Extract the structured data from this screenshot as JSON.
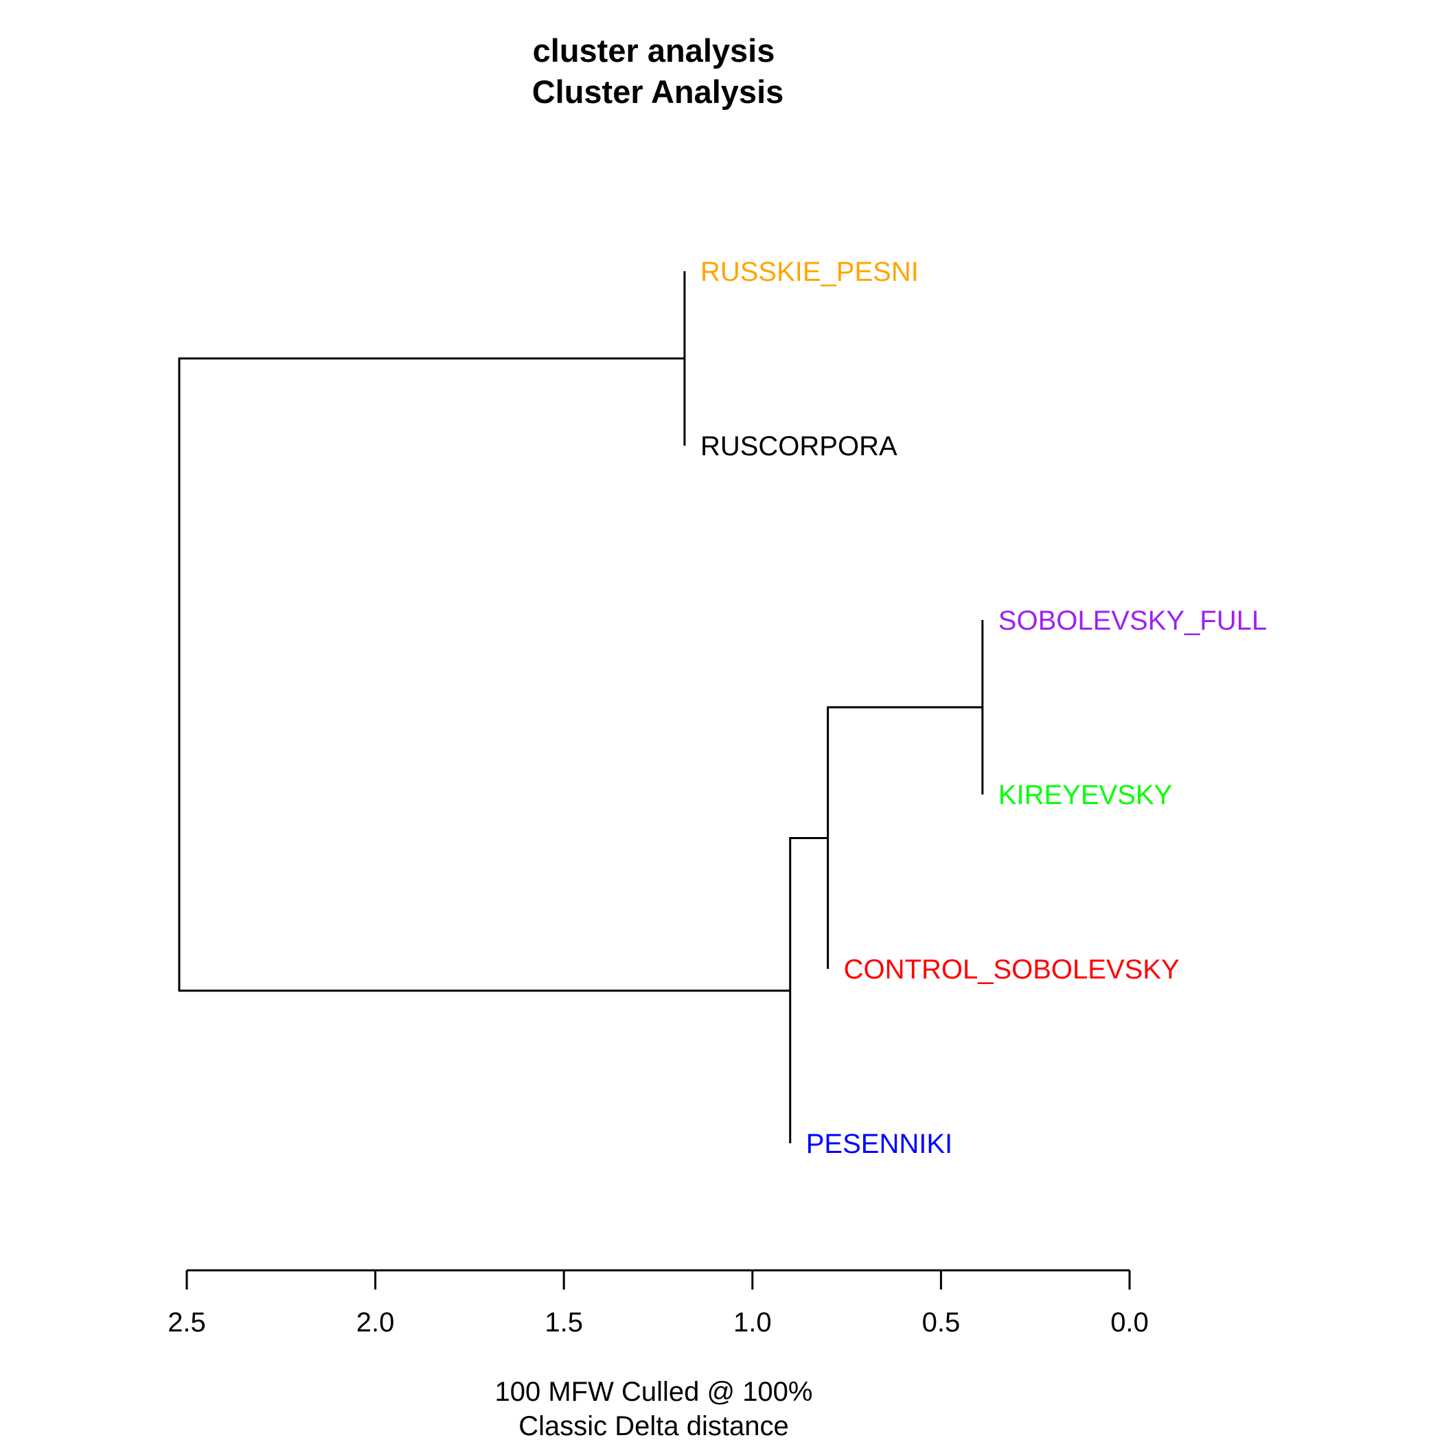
{
  "chart_data": {
    "type": "dendrogram",
    "title_lines": [
      "cluster analysis",
      "Cluster Analysis"
    ],
    "subtitle_lines": [
      "100 MFW  Culled @ 100%",
      "Classic Delta distance"
    ],
    "xlim": [
      2.5,
      0.0
    ],
    "ticks": [
      {
        "value": 2.5,
        "label": "2.5"
      },
      {
        "value": 2.0,
        "label": "2.0"
      },
      {
        "value": 1.5,
        "label": "1.5"
      },
      {
        "value": 1.0,
        "label": "1.0"
      },
      {
        "value": 0.5,
        "label": "0.5"
      },
      {
        "value": 0.0,
        "label": "0.0"
      }
    ],
    "leaves": [
      {
        "label": "RUSSKIE_PESNI",
        "color": "#ffa500"
      },
      {
        "label": "RUSCORPORA",
        "color": "#000000"
      },
      {
        "label": "SOBOLEVSKY_FULL",
        "color": "#a020f0"
      },
      {
        "label": "KIREYEVSKY",
        "color": "#00ff00"
      },
      {
        "label": "CONTROL_SOBOLEVSKY",
        "color": "#ff0000"
      },
      {
        "label": "PESENNIKI",
        "color": "#0000ff"
      }
    ],
    "merges": [
      {
        "a": "L0",
        "b": "L1",
        "height": 1.18
      },
      {
        "a": "L2",
        "b": "L3",
        "height": 0.39
      },
      {
        "a": "M1",
        "b": "L4",
        "height": 0.8
      },
      {
        "a": "M2",
        "b": "L5",
        "height": 0.9
      },
      {
        "a": "M0",
        "b": "M3",
        "height": 2.52
      }
    ]
  }
}
